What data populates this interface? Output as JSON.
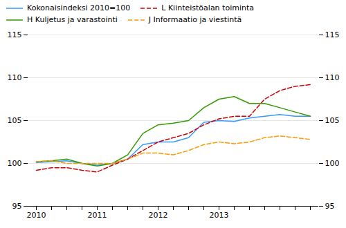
{
  "chart_data": {
    "type": "line",
    "categories": [
      "2010",
      null,
      null,
      null,
      "2011",
      null,
      null,
      null,
      "2012",
      null,
      null,
      null,
      "2013",
      null,
      null,
      null,
      null,
      null,
      null
    ],
    "series": [
      {
        "name": "Kokonaisindeksi 2010=100",
        "color": "#3399ff",
        "line_style": "solid",
        "values": [
          100.1,
          100.2,
          100.3,
          100.0,
          99.8,
          100.0,
          100.5,
          102.2,
          102.5,
          102.5,
          103.0,
          104.8,
          105.0,
          104.9,
          105.3,
          105.5,
          105.7,
          105.5,
          105.5
        ]
      },
      {
        "name": "L Kiinteistöalan toiminta",
        "color": "#cc0000",
        "line_style": "dashed",
        "values": [
          99.2,
          99.5,
          99.5,
          99.2,
          99.0,
          99.8,
          100.5,
          101.5,
          102.5,
          103.0,
          103.5,
          104.5,
          105.2,
          105.5,
          105.5,
          107.5,
          108.5,
          109.0,
          109.2
        ]
      },
      {
        "name": "H Kuljetus ja varastointi",
        "color": "#339900",
        "line_style": "solid",
        "values": [
          100.2,
          100.3,
          100.5,
          100.0,
          99.7,
          100.0,
          101.0,
          103.5,
          104.5,
          104.7,
          105.0,
          106.5,
          107.5,
          107.8,
          107.0,
          107.0,
          106.5,
          106.0,
          105.5
        ]
      },
      {
        "name": "J Informaatio ja viestintä",
        "color": "#ff9900",
        "line_style": "dashed",
        "values": [
          100.2,
          100.3,
          100.0,
          100.0,
          100.0,
          100.0,
          100.5,
          101.2,
          101.2,
          101.0,
          101.5,
          102.2,
          102.5,
          102.3,
          102.5,
          103.0,
          103.2,
          103.0,
          102.8
        ]
      }
    ],
    "ylim": [
      95,
      115
    ],
    "yticks": [
      95,
      100,
      105,
      110,
      115
    ],
    "grid": true,
    "legend": "upper left"
  }
}
